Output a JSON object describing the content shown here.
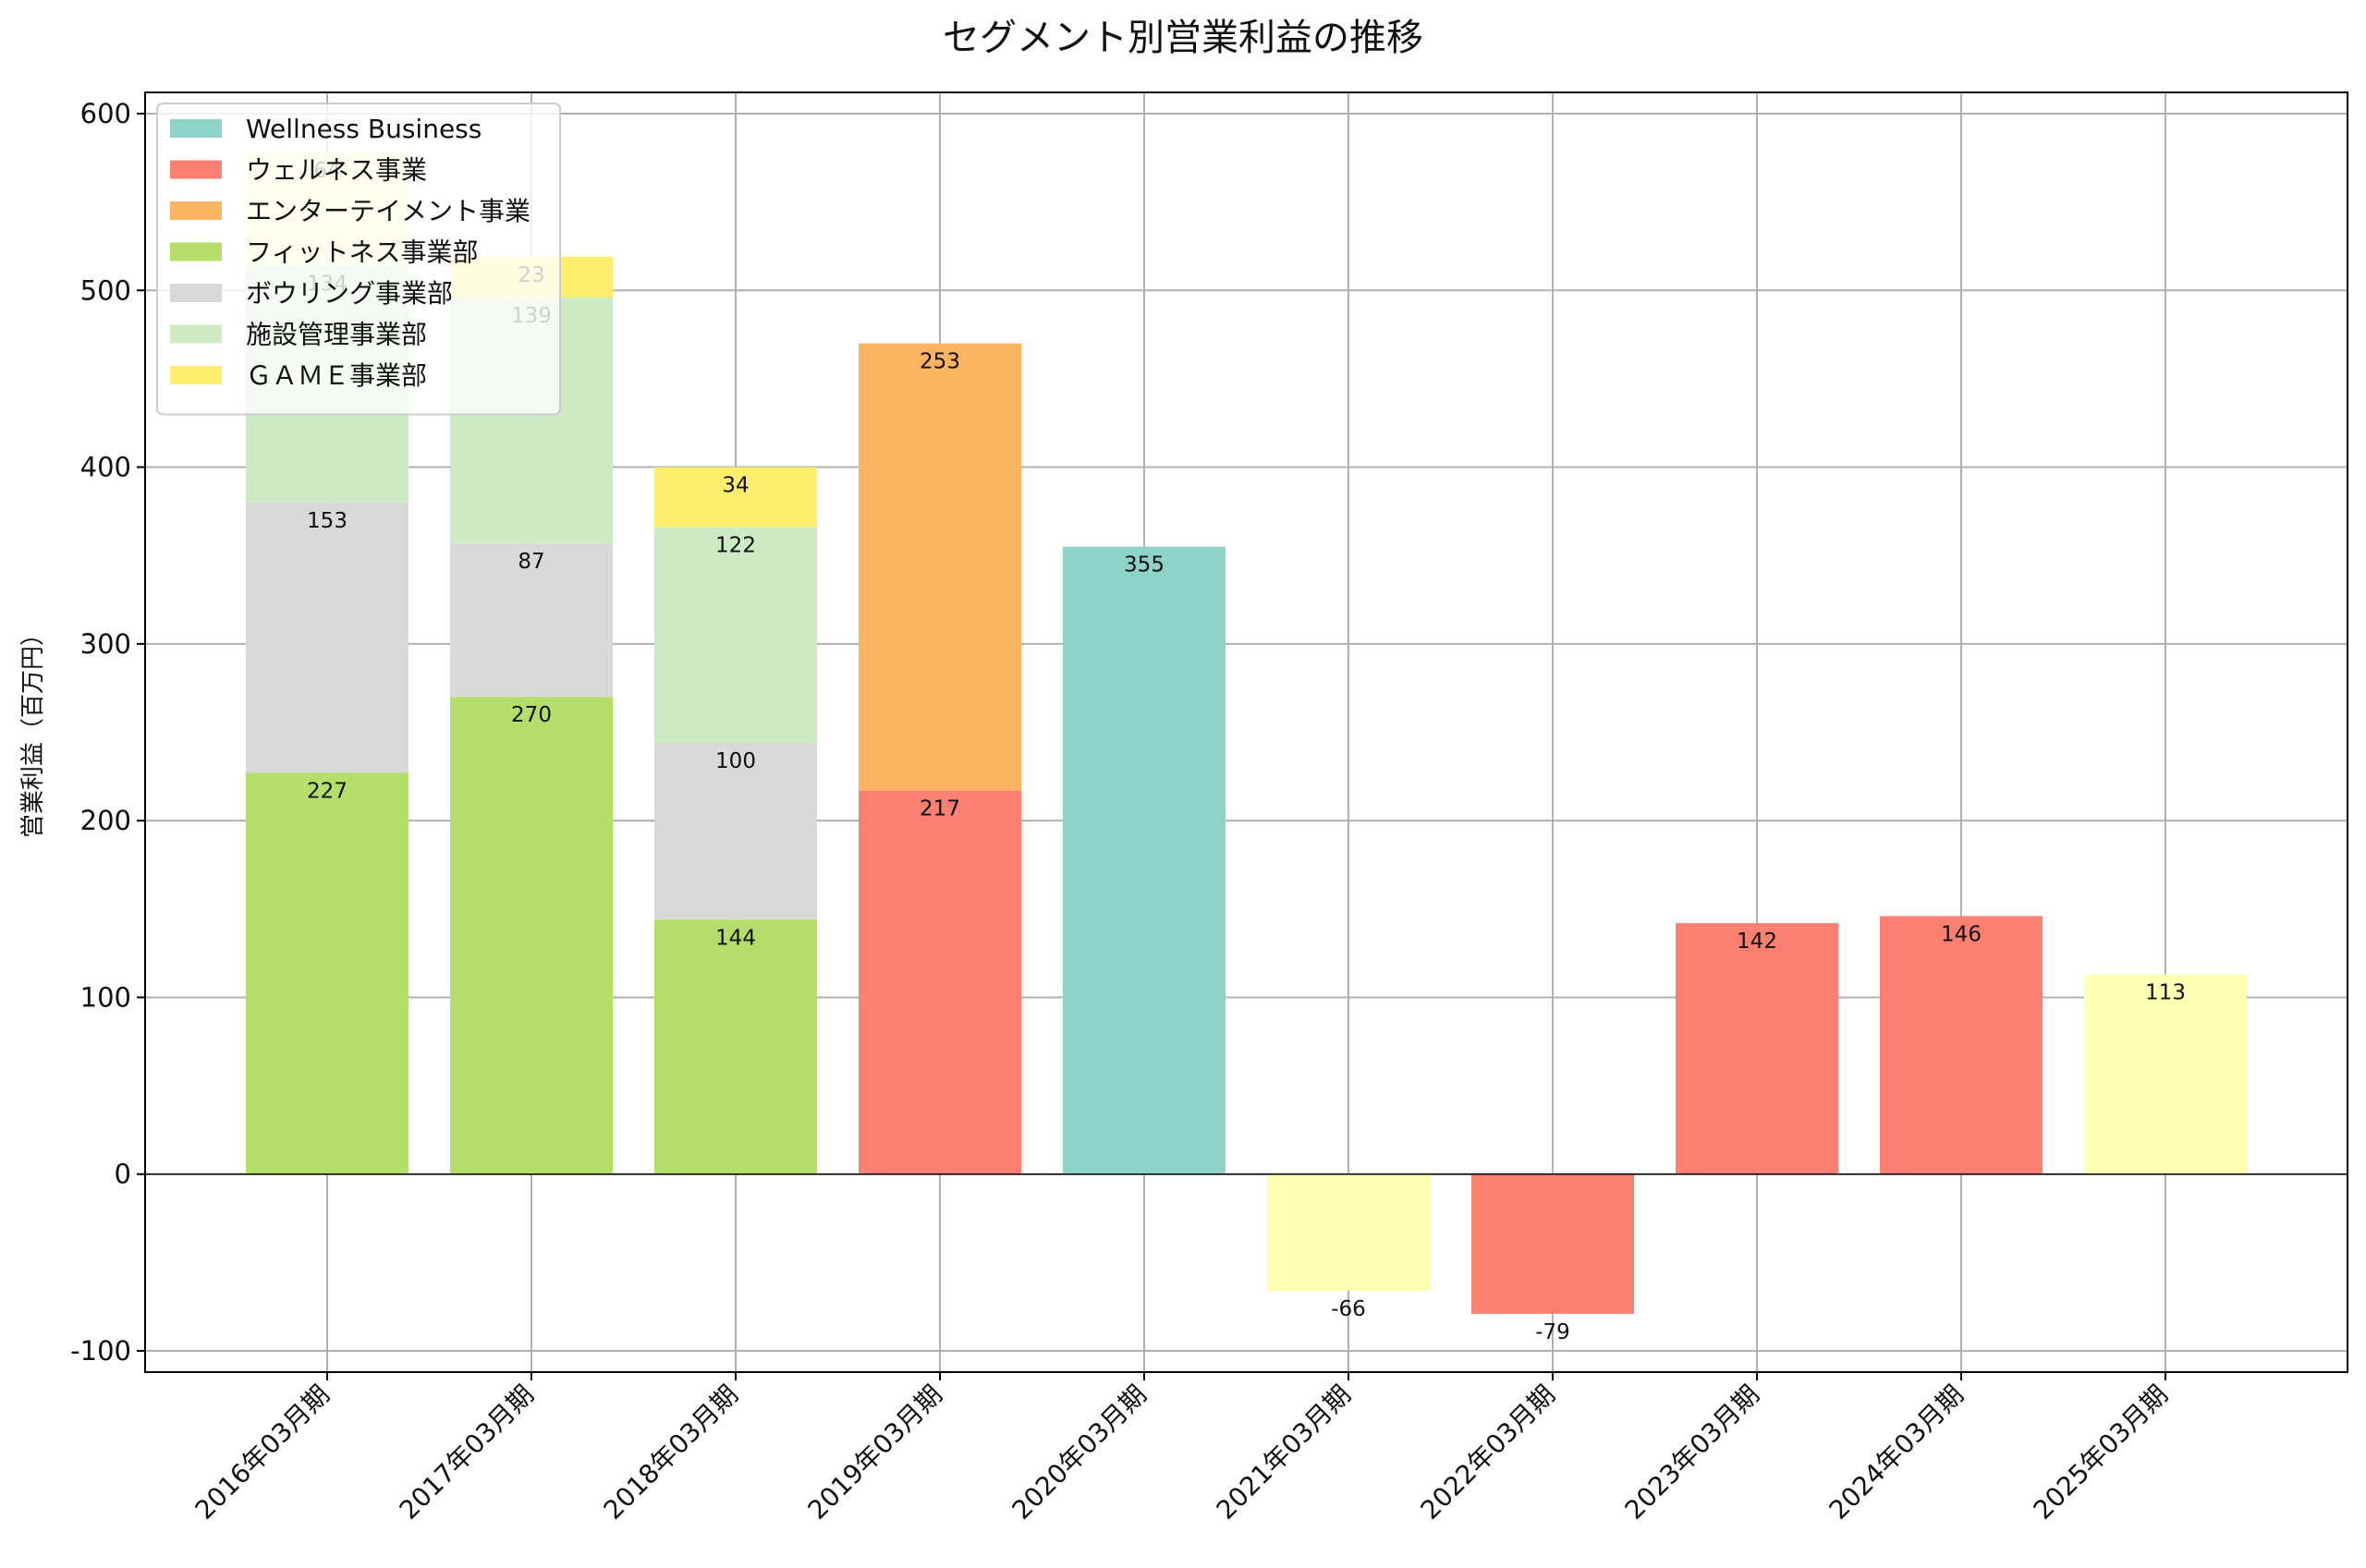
{
  "chart_data": {
    "type": "bar",
    "stacked": true,
    "title": "セグメント別営業利益の推移",
    "xlabel": "",
    "ylabel": "営業利益（百万円）",
    "ylim": [
      -112,
      612
    ],
    "yticks": [
      -100,
      0,
      100,
      200,
      300,
      400,
      500,
      600
    ],
    "grid": true,
    "legend_position": "upper-left",
    "categories": [
      "2016年03月期",
      "2017年03月期",
      "2018年03月期",
      "2019年03月期",
      "2020年03月期",
      "2021年03月期",
      "2022年03月期",
      "2023年03月期",
      "2024年03月期",
      "2025年03月期"
    ],
    "series": [
      {
        "name": "フィットネス事業部",
        "color": "#b3de69",
        "values": [
          227,
          270,
          144,
          null,
          null,
          null,
          null,
          null,
          null,
          null
        ]
      },
      {
        "name": "ボウリング事業部",
        "color": "#d9d9d9",
        "values": [
          153,
          87,
          100,
          null,
          null,
          null,
          null,
          null,
          null,
          null
        ]
      },
      {
        "name": "施設管理事業部",
        "color": "#ccebc5",
        "values": [
          134,
          139,
          122,
          null,
          null,
          null,
          null,
          null,
          null,
          null
        ]
      },
      {
        "name": "ＧＡＭＥ事業部",
        "color": "#ffed6f",
        "values": [
          null,
          23,
          34,
          null,
          null,
          null,
          null,
          null,
          null,
          null
        ]
      },
      {
        "name": "ウェルネス事業",
        "color": "#fb8072",
        "values": [
          null,
          null,
          null,
          217,
          null,
          null,
          -79,
          142,
          146,
          null
        ]
      },
      {
        "name": "エンターテイメント事業",
        "color": "#fdb462",
        "values": [
          null,
          null,
          null,
          253,
          null,
          null,
          null,
          null,
          null,
          null
        ]
      },
      {
        "name": "Wellness Business",
        "color": "#8dd3c7",
        "values": [
          null,
          null,
          null,
          null,
          355,
          null,
          null,
          null,
          null,
          null
        ]
      },
      {
        "name": "",
        "color": "#ffffb3",
        "values": [
          64,
          null,
          null,
          null,
          null,
          -66,
          null,
          null,
          null,
          113
        ]
      }
    ],
    "legend_order": [
      "Wellness Business",
      "ウェルネス事業",
      "エンターテイメント事業",
      "フィットネス事業部",
      "ボウリング事業部",
      "施設管理事業部",
      "ＧＡＭＥ事業部"
    ]
  }
}
